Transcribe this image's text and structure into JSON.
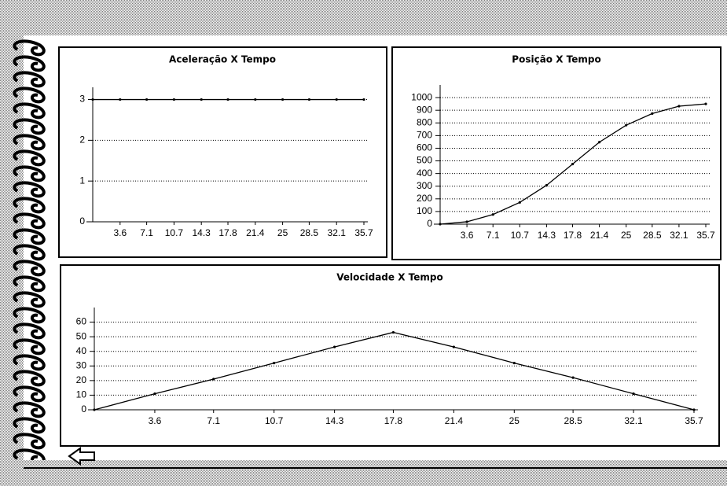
{
  "chart_data": [
    {
      "type": "line",
      "title": "Aceleração X Tempo",
      "x": [
        0,
        3.6,
        7.1,
        10.7,
        14.3,
        17.8,
        21.4,
        25,
        28.5,
        32.1,
        35.7
      ],
      "values": [
        3,
        3,
        3,
        3,
        3,
        3,
        3,
        3,
        3,
        3,
        3
      ],
      "xlim": [
        0,
        35.7
      ],
      "xticks": [
        3.6,
        7.1,
        10.7,
        14.3,
        17.8,
        21.4,
        25,
        28.5,
        32.1,
        35.7
      ],
      "ylim": [
        0,
        3.3
      ],
      "yticks": [
        0,
        1,
        2,
        3
      ],
      "grid": true,
      "color": "#000000"
    },
    {
      "type": "line",
      "title": "Posição X Tempo",
      "x": [
        0,
        3.6,
        7.1,
        10.7,
        14.3,
        17.8,
        21.4,
        25,
        28.5,
        32.1,
        35.7
      ],
      "values": [
        0,
        19,
        76,
        172,
        307,
        475,
        648,
        782,
        874,
        932,
        950
      ],
      "xlim": [
        0,
        35.7
      ],
      "xticks": [
        3.6,
        7.1,
        10.7,
        14.3,
        17.8,
        21.4,
        25,
        28.5,
        32.1,
        35.7
      ],
      "ylim": [
        0,
        1100
      ],
      "yticks": [
        0,
        100,
        200,
        300,
        400,
        500,
        600,
        700,
        800,
        900,
        1000
      ],
      "grid": true,
      "color": "#000000"
    },
    {
      "type": "line",
      "title": "Velocidade X Tempo",
      "x": [
        0,
        3.6,
        7.1,
        10.7,
        14.3,
        17.8,
        21.4,
        25,
        28.5,
        32.1,
        35.7
      ],
      "values": [
        0,
        11,
        21,
        32,
        43,
        53,
        43,
        32,
        22,
        11,
        0
      ],
      "xlim": [
        0,
        35.7
      ],
      "xticks": [
        3.6,
        7.1,
        10.7,
        14.3,
        17.8,
        21.4,
        25,
        28.5,
        32.1,
        35.7
      ],
      "ylim": [
        0,
        70
      ],
      "yticks": [
        0,
        10,
        20,
        30,
        40,
        50,
        60
      ],
      "grid": true,
      "color": "#000000"
    }
  ]
}
